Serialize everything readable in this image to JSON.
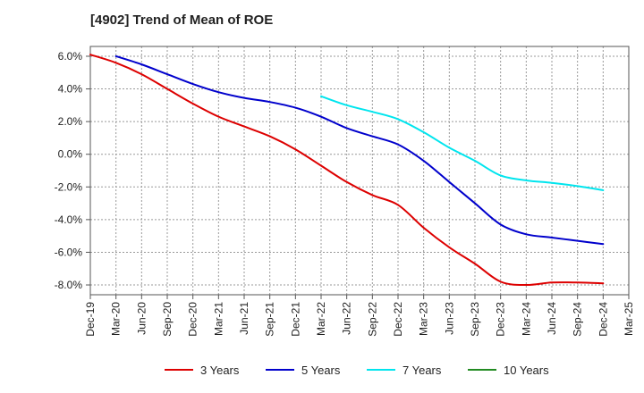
{
  "chart_data": {
    "type": "line",
    "title": "[4902]  Trend of Mean of ROE",
    "xlabel": "",
    "ylabel": "",
    "ylim": [
      -8.6,
      6.6
    ],
    "yticks": [
      6.0,
      4.0,
      2.0,
      0.0,
      -2.0,
      -4.0,
      -6.0,
      -8.0
    ],
    "ytick_labels": [
      "6.0%",
      "4.0%",
      "2.0%",
      "0.0%",
      "-2.0%",
      "-4.0%",
      "-6.0%",
      "-8.0%"
    ],
    "categories": [
      "Dec-19",
      "Mar-20",
      "Jun-20",
      "Sep-20",
      "Dec-20",
      "Mar-21",
      "Jun-21",
      "Sep-21",
      "Dec-21",
      "Mar-22",
      "Jun-22",
      "Sep-22",
      "Dec-22",
      "Mar-23",
      "Jun-23",
      "Sep-23",
      "Dec-23",
      "Mar-24",
      "Jun-24",
      "Sep-24",
      "Dec-24",
      "Mar-25"
    ],
    "grid": true,
    "legend_position": "bottom",
    "series": [
      {
        "name": "3 Years",
        "color": "#dd0000",
        "values": [
          6.1,
          5.6,
          4.9,
          4.0,
          3.1,
          2.3,
          1.7,
          1.1,
          0.3,
          -0.7,
          -1.7,
          -2.5,
          -3.1,
          -4.5,
          -5.7,
          -6.7,
          -7.8,
          -8.0,
          -7.85,
          -7.85,
          -7.9,
          null
        ]
      },
      {
        "name": "5 Years",
        "color": "#0000cc",
        "values": [
          null,
          6.0,
          5.5,
          4.9,
          4.3,
          3.8,
          3.45,
          3.2,
          2.85,
          2.3,
          1.6,
          1.1,
          0.6,
          -0.4,
          -1.7,
          -3.0,
          -4.3,
          -4.9,
          -5.1,
          -5.3,
          -5.5,
          null
        ]
      },
      {
        "name": "7 Years",
        "color": "#00e5ee",
        "values": [
          null,
          null,
          null,
          null,
          null,
          null,
          null,
          null,
          null,
          3.55,
          3.0,
          2.6,
          2.15,
          1.35,
          0.4,
          -0.4,
          -1.3,
          -1.6,
          -1.75,
          -1.95,
          -2.2,
          null
        ]
      },
      {
        "name": "10 Years",
        "color": "#228b22",
        "values": [
          null,
          null,
          null,
          null,
          null,
          null,
          null,
          null,
          null,
          null,
          null,
          null,
          null,
          null,
          null,
          null,
          null,
          null,
          null,
          null,
          null,
          null
        ]
      }
    ]
  }
}
